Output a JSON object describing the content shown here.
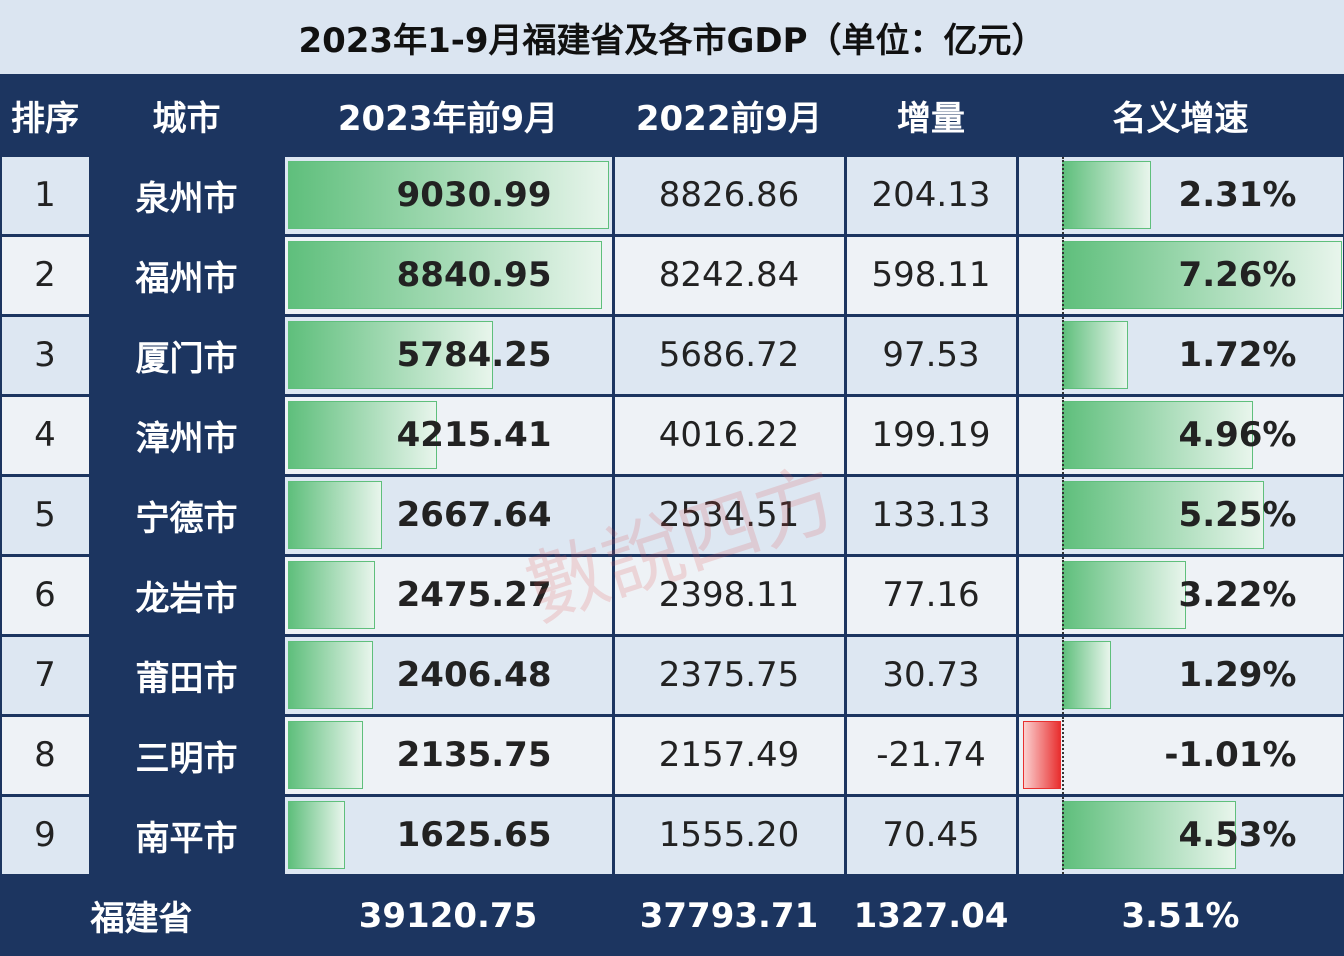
{
  "title": "2023年1-9月福建省及各市GDP（单位：亿元）",
  "table": {
    "header": [
      "排序",
      "城市",
      "2023年前9月",
      "2022前9月",
      "增量",
      "名义增速"
    ],
    "rows": [
      [
        "1",
        "泉州市",
        "9030.99",
        "8826.86",
        "204.13",
        "2.31%"
      ],
      [
        "2",
        "福州市",
        "8840.95",
        "8242.84",
        "598.11",
        "7.26%"
      ],
      [
        "3",
        "厦门市",
        "5784.25",
        "5686.72",
        "97.53",
        "1.72%"
      ],
      [
        "4",
        "漳州市",
        "4215.41",
        "4016.22",
        "199.19",
        "4.96%"
      ],
      [
        "5",
        "宁德市",
        "2667.64",
        "2534.51",
        "133.13",
        "5.25%"
      ],
      [
        "6",
        "龙岩市",
        "2475.27",
        "2398.11",
        "77.16",
        "3.22%"
      ],
      [
        "7",
        "莆田市",
        "2406.48",
        "2375.75",
        "30.73",
        "1.29%"
      ],
      [
        "8",
        "三明市",
        "2135.75",
        "2157.49",
        "-21.74",
        "-1.01%"
      ],
      [
        "9",
        "南平市",
        "1625.65",
        "1555.20",
        "70.45",
        "4.53%"
      ]
    ],
    "total": [
      "福建省",
      "39120.75",
      "37793.71",
      "1327.04",
      "3.51%"
    ]
  },
  "watermark": "數說四方"
}
